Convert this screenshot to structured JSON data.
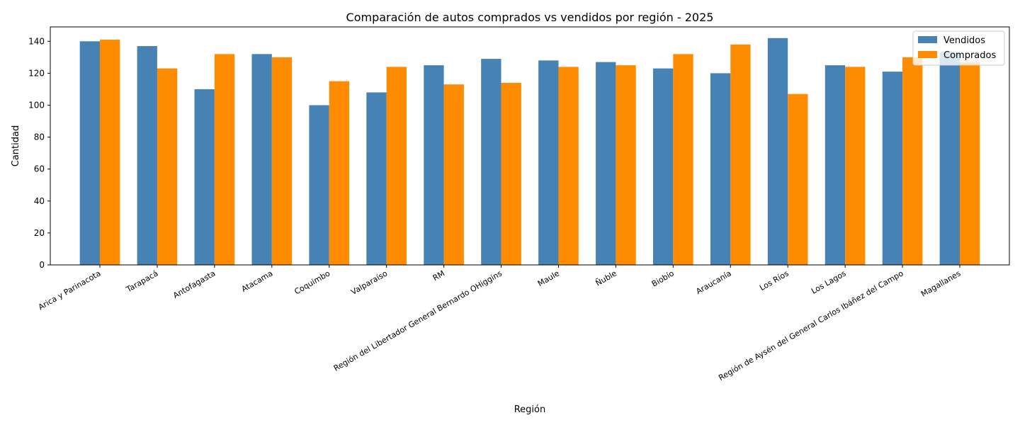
{
  "chart_data": {
    "type": "bar",
    "title": "Comparación de autos comprados vs vendidos por región - 2025",
    "xlabel": "Región",
    "ylabel": "Cantidad",
    "ylim": [
      0,
      149
    ],
    "yticks": [
      0,
      20,
      40,
      60,
      80,
      100,
      120,
      140
    ],
    "grid": false,
    "legend_position": "top-right",
    "categories": [
      "Arica y Parinacota",
      "Tarapacá",
      "Antofagasta",
      "Atacama",
      "Coquimbo",
      "Valparaíso",
      "RM",
      "Región del Libertador General Bernardo OHiggins",
      "Maule",
      "Ñuble",
      "Biobío",
      "Araucanía",
      "Los Ríos",
      "Los Lagos",
      "Región de Aysén del General Carlos Ibáñez del Campo",
      "Magallanes"
    ],
    "series": [
      {
        "name": "Vendidos",
        "color": "#4682b4",
        "values": [
          140,
          137,
          110,
          132,
          100,
          108,
          125,
          129,
          128,
          127,
          123,
          120,
          142,
          125,
          121,
          133
        ]
      },
      {
        "name": "Comprados",
        "color": "#ff8c00",
        "values": [
          141,
          123,
          132,
          130,
          115,
          124,
          113,
          114,
          124,
          125,
          132,
          138,
          107,
          124,
          130,
          127
        ]
      }
    ]
  }
}
